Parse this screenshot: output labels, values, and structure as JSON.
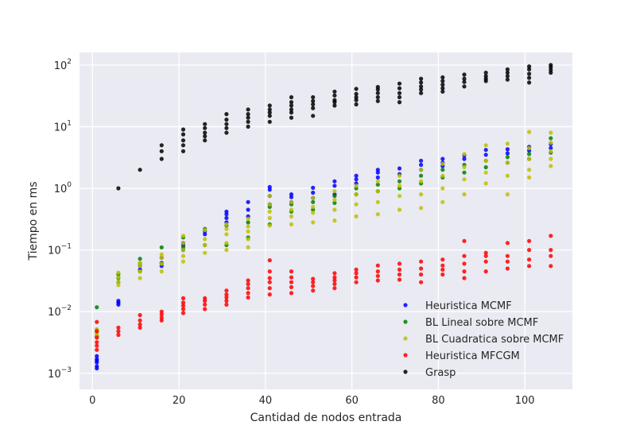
{
  "chart_data": {
    "type": "scatter",
    "title": "",
    "xlabel": "Cantidad de nodos entrada",
    "ylabel": "Tiempo en ms",
    "xlim": [
      -3,
      111
    ],
    "ylim": [
      0.00055,
      160
    ],
    "yscale": "log",
    "grid": true,
    "legend_position": "bottom-right",
    "background": "#eaeaf2",
    "x_ticks": [
      0,
      20,
      40,
      60,
      80,
      100
    ],
    "y_ticks": [
      {
        "value": 0.001,
        "base": "10",
        "exp": "−3"
      },
      {
        "value": 0.01,
        "base": "10",
        "exp": "−2"
      },
      {
        "value": 0.1,
        "base": "10",
        "exp": "−1"
      },
      {
        "value": 1,
        "base": "10",
        "exp": "0"
      },
      {
        "value": 10,
        "base": "10",
        "exp": "1"
      },
      {
        "value": 100,
        "base": "10",
        "exp": "2"
      }
    ],
    "series": [
      {
        "name": "Heuristica MCMF",
        "color": "#0000ff",
        "x": [
          1,
          1,
          1,
          1,
          1,
          1,
          6,
          6,
          6,
          11,
          11,
          16,
          16,
          16,
          21,
          21,
          21,
          26,
          26,
          31,
          31,
          31,
          31,
          36,
          36,
          36,
          41,
          41,
          41,
          41,
          46,
          46,
          46,
          51,
          51,
          51,
          56,
          56,
          56,
          61,
          61,
          61,
          66,
          66,
          66,
          71,
          71,
          76,
          76,
          76,
          81,
          81,
          81,
          86,
          86,
          91,
          91,
          96,
          96,
          101,
          101,
          106,
          106
        ],
        "y": [
          0.0012,
          0.0013,
          0.0015,
          0.0017,
          0.0019,
          0.0016,
          0.014,
          0.015,
          0.013,
          0.048,
          0.055,
          0.055,
          0.062,
          0.075,
          0.12,
          0.13,
          0.1,
          0.2,
          0.18,
          0.28,
          0.33,
          0.38,
          0.42,
          0.35,
          0.45,
          0.6,
          0.55,
          0.75,
          0.95,
          1.05,
          0.6,
          0.72,
          0.8,
          0.7,
          0.85,
          1.02,
          0.8,
          1.1,
          1.3,
          1.2,
          1.4,
          1.6,
          1.5,
          1.8,
          2.0,
          1.7,
          2.1,
          2.0,
          2.4,
          2.8,
          2.3,
          2.6,
          3.0,
          3.0,
          3.4,
          3.5,
          4.2,
          3.7,
          4.3,
          4.1,
          4.7,
          4.5,
          5.2
        ]
      },
      {
        "name": "BL Lineal sobre MCMF",
        "color": "#008000",
        "x": [
          1,
          1,
          1,
          6,
          6,
          6,
          11,
          11,
          11,
          16,
          16,
          21,
          21,
          26,
          26,
          31,
          31,
          36,
          36,
          41,
          41,
          46,
          46,
          51,
          51,
          56,
          56,
          61,
          61,
          66,
          66,
          71,
          71,
          76,
          76,
          81,
          81,
          86,
          86,
          91,
          91,
          96,
          96,
          101,
          101,
          106,
          106
        ],
        "y": [
          0.0118,
          0.005,
          0.004,
          0.035,
          0.03,
          0.04,
          0.072,
          0.045,
          0.06,
          0.11,
          0.06,
          0.16,
          0.11,
          0.22,
          0.12,
          0.25,
          0.12,
          0.28,
          0.16,
          0.26,
          0.5,
          0.42,
          0.55,
          0.45,
          0.6,
          0.58,
          0.75,
          0.8,
          1.0,
          0.9,
          1.15,
          1.0,
          1.3,
          1.2,
          1.6,
          1.5,
          2.0,
          1.8,
          2.4,
          2.2,
          2.8,
          2.6,
          3.2,
          3.0,
          3.6,
          3.8,
          6.5
        ]
      },
      {
        "name": "BL Cuadratica sobre MCMF",
        "color": "#bfbf00",
        "x": [
          1,
          1,
          1,
          1,
          1,
          6,
          6,
          6,
          6,
          11,
          11,
          11,
          11,
          16,
          16,
          16,
          16,
          21,
          21,
          21,
          21,
          21,
          26,
          26,
          26,
          26,
          31,
          31,
          31,
          31,
          31,
          36,
          36,
          36,
          36,
          36,
          41,
          41,
          41,
          41,
          41,
          46,
          46,
          46,
          46,
          51,
          51,
          51,
          51,
          56,
          56,
          56,
          56,
          61,
          61,
          61,
          61,
          66,
          66,
          66,
          66,
          71,
          71,
          71,
          71,
          76,
          76,
          76,
          76,
          81,
          81,
          81,
          81,
          86,
          86,
          86,
          86,
          91,
          91,
          91,
          91,
          96,
          96,
          96,
          96,
          101,
          101,
          101,
          101,
          101,
          106,
          106,
          106,
          106,
          106
        ],
        "y": [
          0.0042,
          0.0048,
          0.0052,
          0.0038,
          0.0045,
          0.03,
          0.036,
          0.043,
          0.027,
          0.035,
          0.045,
          0.055,
          0.062,
          0.045,
          0.06,
          0.075,
          0.085,
          0.065,
          0.08,
          0.1,
          0.13,
          0.17,
          0.09,
          0.12,
          0.15,
          0.21,
          0.1,
          0.13,
          0.18,
          0.22,
          0.26,
          0.11,
          0.15,
          0.2,
          0.24,
          0.32,
          0.25,
          0.33,
          0.42,
          0.55,
          0.75,
          0.26,
          0.35,
          0.45,
          0.6,
          0.28,
          0.4,
          0.5,
          0.7,
          0.3,
          0.45,
          0.65,
          0.9,
          0.35,
          0.55,
          0.8,
          1.1,
          0.38,
          0.6,
          0.9,
          1.3,
          0.45,
          0.75,
          1.1,
          1.6,
          0.48,
          0.8,
          1.3,
          2.0,
          0.6,
          1.0,
          1.6,
          2.5,
          0.8,
          1.4,
          2.2,
          3.6,
          1.2,
          1.8,
          2.8,
          5.0,
          0.8,
          1.6,
          2.6,
          5.3,
          1.5,
          2.0,
          3.0,
          4.5,
          8.2,
          2.3,
          3.0,
          4.0,
          5.5,
          8.0
        ]
      },
      {
        "name": "Heuristica MFCGM",
        "color": "#ff0000",
        "x": [
          1,
          1,
          1,
          1,
          1,
          1,
          6,
          6,
          6,
          11,
          11,
          11,
          11,
          16,
          16,
          16,
          16,
          21,
          21,
          21,
          21,
          21,
          26,
          26,
          26,
          26,
          31,
          31,
          31,
          31,
          31,
          36,
          36,
          36,
          36,
          36,
          41,
          41,
          41,
          41,
          41,
          41,
          46,
          46,
          46,
          46,
          46,
          51,
          51,
          51,
          51,
          56,
          56,
          56,
          56,
          56,
          61,
          61,
          61,
          61,
          66,
          66,
          66,
          66,
          71,
          71,
          71,
          71,
          76,
          76,
          76,
          76,
          81,
          81,
          81,
          81,
          86,
          86,
          86,
          86,
          86,
          91,
          91,
          91,
          91,
          96,
          96,
          96,
          96,
          101,
          101,
          101,
          101,
          106,
          106,
          106,
          106
        ],
        "y": [
          0.0068,
          0.0048,
          0.0032,
          0.0028,
          0.0024,
          0.0038,
          0.0042,
          0.0048,
          0.0055,
          0.0055,
          0.0062,
          0.0072,
          0.0088,
          0.0072,
          0.008,
          0.009,
          0.01,
          0.0095,
          0.011,
          0.0125,
          0.014,
          0.0165,
          0.011,
          0.013,
          0.015,
          0.0165,
          0.013,
          0.015,
          0.017,
          0.019,
          0.022,
          0.017,
          0.02,
          0.024,
          0.028,
          0.032,
          0.019,
          0.024,
          0.03,
          0.035,
          0.045,
          0.068,
          0.02,
          0.025,
          0.03,
          0.036,
          0.045,
          0.022,
          0.026,
          0.03,
          0.034,
          0.024,
          0.028,
          0.032,
          0.036,
          0.042,
          0.03,
          0.036,
          0.042,
          0.048,
          0.032,
          0.038,
          0.045,
          0.056,
          0.033,
          0.04,
          0.048,
          0.06,
          0.03,
          0.04,
          0.05,
          0.065,
          0.04,
          0.048,
          0.056,
          0.07,
          0.035,
          0.045,
          0.06,
          0.08,
          0.14,
          0.045,
          0.065,
          0.08,
          0.09,
          0.05,
          0.065,
          0.08,
          0.13,
          0.055,
          0.07,
          0.1,
          0.14,
          0.055,
          0.08,
          0.1,
          0.17
        ]
      },
      {
        "name": "Grasp",
        "color": "#000000",
        "x": [
          6,
          11,
          16,
          16,
          16,
          21,
          21,
          21,
          21,
          21,
          26,
          26,
          26,
          26,
          26,
          31,
          31,
          31,
          31,
          31,
          36,
          36,
          36,
          36,
          36,
          41,
          41,
          41,
          41,
          41,
          46,
          46,
          46,
          46,
          46,
          46,
          51,
          51,
          51,
          51,
          51,
          56,
          56,
          56,
          56,
          56,
          61,
          61,
          61,
          61,
          61,
          66,
          66,
          66,
          66,
          66,
          71,
          71,
          71,
          71,
          71,
          76,
          76,
          76,
          76,
          76,
          81,
          81,
          81,
          81,
          81,
          86,
          86,
          86,
          86,
          91,
          91,
          91,
          91,
          96,
          96,
          96,
          96,
          101,
          101,
          101,
          101,
          101,
          106,
          106,
          106,
          106
        ],
        "y": [
          1.0,
          2.0,
          3.0,
          4.0,
          5.0,
          4.0,
          5.0,
          6.0,
          7.5,
          9.0,
          6.0,
          7.0,
          8.0,
          9.5,
          11.0,
          8.0,
          9.5,
          11.0,
          13.0,
          16.0,
          10.0,
          12.0,
          14.0,
          16.0,
          19.0,
          12.0,
          15.0,
          17.0,
          19.0,
          22.0,
          14.0,
          17.0,
          19.0,
          22.0,
          25.0,
          30.0,
          15.0,
          20.0,
          23.0,
          26.0,
          30.0,
          22.0,
          25.0,
          27.0,
          32.0,
          37.0,
          23.0,
          27.0,
          30.0,
          34.0,
          41.0,
          26.0,
          30.0,
          35.0,
          40.0,
          44.0,
          25.0,
          30.0,
          35.0,
          42.0,
          50.0,
          35.0,
          40.0,
          45.0,
          52.0,
          60.0,
          37.0,
          42.0,
          48.0,
          55.0,
          63.0,
          45.0,
          53.0,
          60.0,
          70.0,
          55.0,
          60.0,
          66.0,
          75.0,
          58.0,
          66.0,
          75.0,
          85.0,
          52.0,
          62.0,
          72.0,
          85.0,
          95.0,
          75.0,
          83.0,
          92.0,
          100.0
        ]
      }
    ]
  }
}
